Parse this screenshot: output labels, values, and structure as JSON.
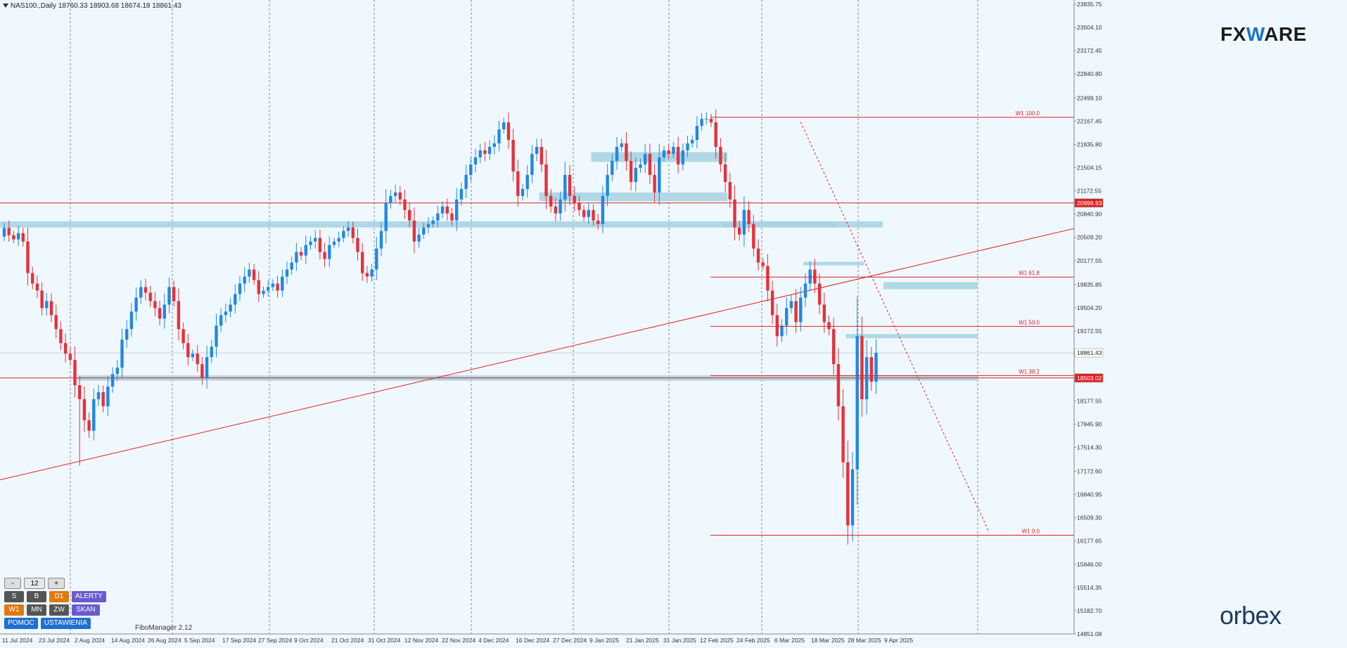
{
  "header": {
    "symbol": "NAS100.,Daily",
    "ohlc": "18760.33 18903.68 18674.18 18861.43"
  },
  "logos": {
    "fx_a": "FX",
    "fx_w": "W",
    "fx_b": "ARE",
    "orbex": "orbex"
  },
  "panel": {
    "minus": "-",
    "count": "12",
    "plus": "+",
    "row1": [
      "S",
      "B",
      "D1",
      "ALERTY"
    ],
    "row2": [
      "W1",
      "MN",
      "ZW",
      "SKAN"
    ],
    "row3": [
      "POMOC",
      "USTAWIENIA"
    ]
  },
  "fibo_manager": "FiboManager 2.12",
  "colors": {
    "bull": "#1f88e5",
    "bear": "#e8303a",
    "zone": "#a8d4e2",
    "line": "#e02020",
    "bg": "#f0f8ff"
  },
  "chart_data": {
    "type": "candlestick",
    "y_range": [
      14851.08,
      23835.75
    ],
    "y_ticks": [
      "23835.75",
      "23504.10",
      "23172.45",
      "22840.80",
      "22499.10",
      "22167.45",
      "21835.80",
      "21504.15",
      "21172.55",
      "20840.90",
      "20509.20",
      "20177.55",
      "19835.85",
      "19504.20",
      "19172.55",
      "18840.90",
      "18509.25",
      "18177.55",
      "17845.90",
      "17514.30",
      "17172.60",
      "16840.95",
      "16509.30",
      "16177.65",
      "15846.00",
      "15514.35",
      "15182.70",
      "14851.08"
    ],
    "x_labels": [
      "11 Jul 2024",
      "23 Jul 2024",
      "2 Aug 2024",
      "14 Aug 2024",
      "26 Aug 2024",
      "5 Sep 2024",
      "17 Sep 2024",
      "27 Sep 2024",
      "9 Oct 2024",
      "21 Oct 2024",
      "31 Oct 2024",
      "12 Nov 2024",
      "22 Nov 2024",
      "4 Dec 2024",
      "16 Dec 2024",
      "27 Dec 2024",
      "9 Jan 2025",
      "21 Jan 2025",
      "31 Jan 2025",
      "12 Feb 2025",
      "24 Feb 2025",
      "6 Mar 2025",
      "18 Mar 2025",
      "28 Mar 2025",
      "9 Apr 2025"
    ],
    "closes": [
      20645,
      20540,
      20480,
      20570,
      20450,
      20000,
      19850,
      19750,
      19500,
      19600,
      19400,
      19200,
      19000,
      18850,
      18760,
      18400,
      18200,
      17900,
      17750,
      18200,
      18300,
      18100,
      18380,
      18560,
      18650,
      19050,
      19200,
      19450,
      19650,
      19800,
      19720,
      19600,
      19500,
      19350,
      19550,
      19800,
      19600,
      19200,
      19000,
      18800,
      18850,
      18700,
      18500,
      18800,
      18950,
      19250,
      19400,
      19450,
      19550,
      19700,
      19850,
      19950,
      20050,
      19900,
      19700,
      19750,
      19800,
      19850,
      19750,
      19950,
      20050,
      20150,
      20300,
      20250,
      20400,
      20450,
      20500,
      20300,
      20200,
      20400,
      20450,
      20500,
      20600,
      20650,
      20500,
      20300,
      20000,
      19950,
      20050,
      20350,
      20600,
      21000,
      21100,
      21150,
      21050,
      20900,
      20750,
      20450,
      20550,
      20650,
      20700,
      20750,
      20850,
      20950,
      20850,
      20750,
      21050,
      21200,
      21400,
      21550,
      21650,
      21750,
      21700,
      21800,
      21850,
      22050,
      22150,
      21900,
      21450,
      21100,
      21200,
      21400,
      21700,
      21800,
      21550,
      21100,
      20950,
      20850,
      21050,
      21400,
      21100,
      21000,
      20900,
      20800,
      20900,
      20750,
      20700,
      21100,
      21400,
      21600,
      21800,
      21850,
      21600,
      21300,
      21500,
      21550,
      21700,
      21400,
      21150,
      21650,
      21750,
      21700,
      21800,
      21550,
      21750,
      21850,
      21900,
      22100,
      22200,
      22200,
      22150,
      21800,
      21550,
      21300,
      21050,
      20650,
      20550,
      20900,
      20700,
      20350,
      20150,
      20100,
      19750,
      19400,
      19100,
      19250,
      19500,
      19600,
      19300,
      19650,
      19850,
      20050,
      19850,
      19550,
      19300,
      19200,
      18700,
      18100,
      17300,
      16400,
      17200,
      19100,
      18200,
      18800,
      18450,
      18862
    ]
  },
  "levels": [
    {
      "value": 20999.93,
      "label": "20999.93"
    },
    {
      "value": 18503.02,
      "label": "18503.02"
    },
    {
      "value": 18861.43,
      "label": "18861.43"
    }
  ],
  "fib_levels": [
    {
      "label": "W1 100.0",
      "value": 22222
    },
    {
      "label": "W1 61.8",
      "value": 19943
    },
    {
      "label": "W1 50.0",
      "value": 19240
    },
    {
      "label": "W1 38.2",
      "value": 18538
    },
    {
      "label": "W1 0.0",
      "value": 16260
    }
  ],
  "zones": [
    {
      "from": 0,
      "to": 186,
      "low": 20650,
      "high": 20738
    },
    {
      "from": 16,
      "to": 231,
      "low": 18465,
      "high": 18540
    },
    {
      "from": 125,
      "to": 153,
      "low": 21585,
      "high": 21725
    },
    {
      "from": 114,
      "to": 153,
      "low": 21025,
      "high": 21150
    },
    {
      "from": 153,
      "to": 176,
      "low": 20650,
      "high": 20738
    },
    {
      "from": 170,
      "to": 182,
      "low": 20110,
      "high": 20160
    },
    {
      "from": 187,
      "to": 231,
      "low": 19770,
      "high": 19870
    },
    {
      "from": 179,
      "to": 231,
      "low": 19070,
      "high": 19130
    }
  ],
  "trendline": {
    "start": {
      "index": 0,
      "value": 17050
    },
    "end": {
      "index": 240,
      "value": 20840
    }
  },
  "dashed_line": {
    "start": {
      "index": 169,
      "value": 22155
    },
    "end": {
      "index": 209,
      "value": 16300
    }
  }
}
